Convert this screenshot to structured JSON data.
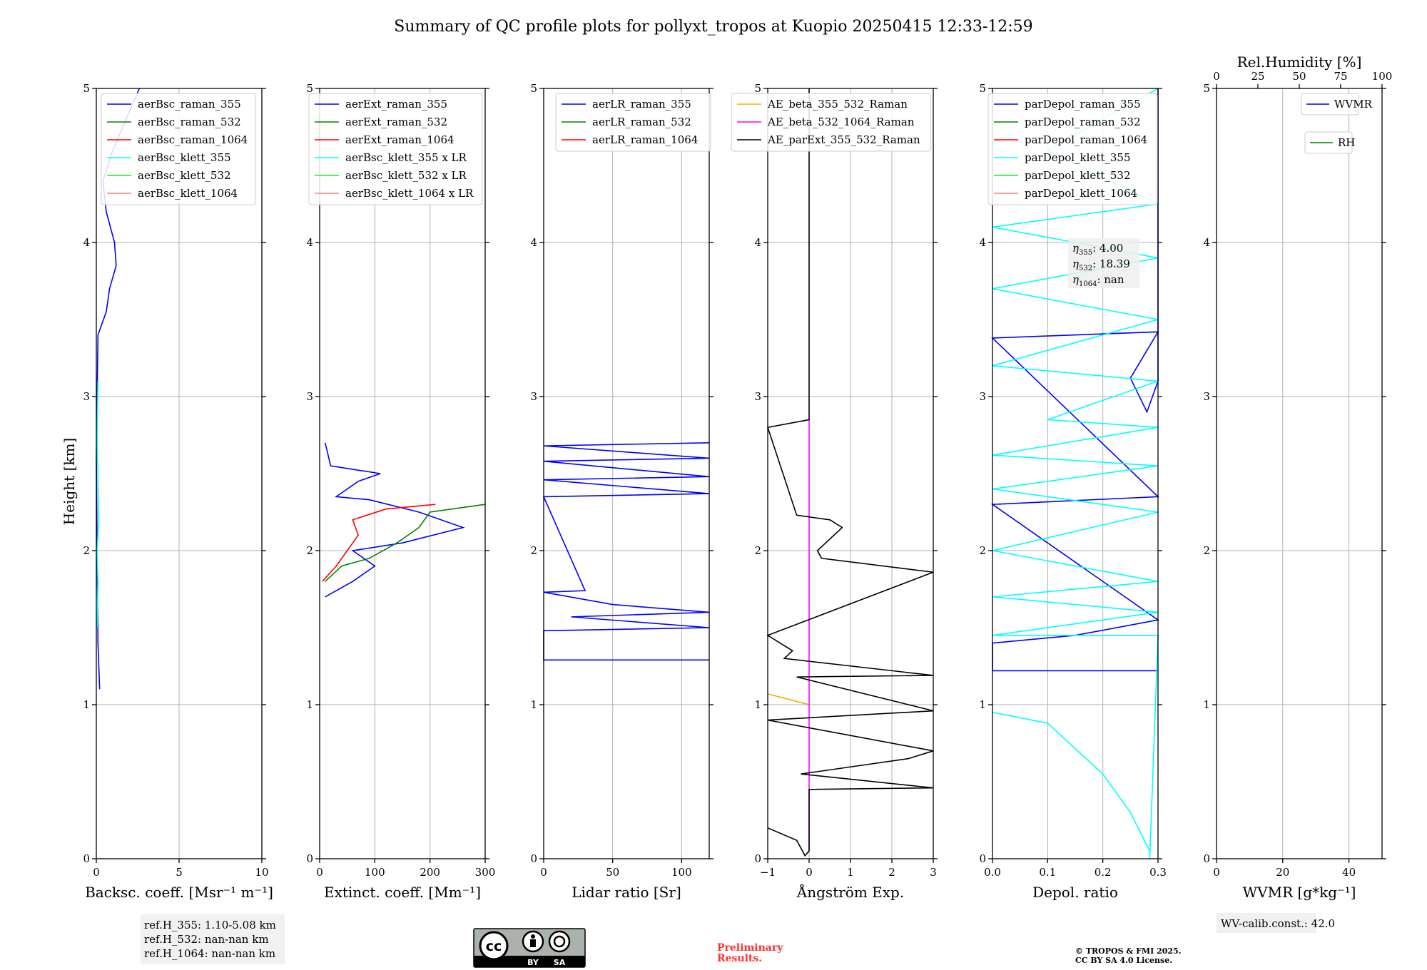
{
  "title": "Summary of QC profile plots for pollyxt_tropos at Kuopio 20250415 12:33-12:59",
  "y_axis_label": "Height [km]",
  "colors": {
    "blue": "#0000ff",
    "green": "#008000",
    "red": "#ff0000",
    "cyan": "#00ffff",
    "lime": "#00ff00",
    "pink": "#ff7f7f",
    "orange": "#ffa500",
    "magenta": "#ff00ff",
    "black": "#000000"
  },
  "chart_data": [
    {
      "type": "line",
      "xlabel": "Backsc. coeff. [Msr⁻¹ m⁻¹]",
      "xlim": [
        0,
        10
      ],
      "xticks": [
        "0",
        "5",
        "10"
      ],
      "xtick_values": [
        0,
        5,
        10
      ],
      "ylim": [
        0,
        5
      ],
      "yticks": [
        "0",
        "1",
        "2",
        "3",
        "4",
        "5"
      ],
      "legend": "top-right",
      "series": [
        {
          "name": "aerBsc_raman_355",
          "color": "#0000ff",
          "points": [
            [
              0.2,
              1.1
            ],
            [
              0.1,
              1.4
            ],
            [
              0.05,
              2.0
            ],
            [
              0.0,
              2.6
            ],
            [
              0.1,
              3.4
            ],
            [
              0.6,
              3.55
            ],
            [
              0.8,
              3.7
            ],
            [
              1.2,
              3.85
            ],
            [
              1.1,
              4.0
            ],
            [
              0.6,
              4.2
            ],
            [
              0.4,
              4.4
            ],
            [
              1.0,
              4.6
            ],
            [
              1.8,
              4.8
            ],
            [
              2.6,
              5.0
            ]
          ]
        },
        {
          "name": "aerBsc_raman_532",
          "color": "#008000",
          "points": []
        },
        {
          "name": "aerBsc_raman_1064",
          "color": "#ff0000",
          "points": []
        },
        {
          "name": "aerBsc_klett_355",
          "color": "#00ffff",
          "points": [
            [
              0.05,
              1.5
            ],
            [
              0.1,
              1.8
            ],
            [
              0.05,
              2.0
            ],
            [
              0.15,
              2.2
            ],
            [
              0.1,
              2.45
            ],
            [
              0.05,
              2.7
            ],
            [
              0.1,
              3.1
            ]
          ]
        },
        {
          "name": "aerBsc_klett_532",
          "color": "#00ff00",
          "points": []
        },
        {
          "name": "aerBsc_klett_1064",
          "color": "#ff7f7f",
          "points": []
        }
      ]
    },
    {
      "type": "line",
      "xlabel": "Extinct. coeff. [Mm⁻¹]",
      "xlim": [
        0,
        300
      ],
      "xticks": [
        "0",
        "100",
        "200",
        "300"
      ],
      "xtick_values": [
        0,
        100,
        200,
        300
      ],
      "ylim": [
        0,
        5
      ],
      "yticks": [
        "0",
        "1",
        "2",
        "3",
        "4",
        "5"
      ],
      "legend": "top-right",
      "series": [
        {
          "name": "aerExt_raman_355",
          "color": "#0000ff",
          "points": [
            [
              10,
              1.7
            ],
            [
              60,
              1.8
            ],
            [
              100,
              1.9
            ],
            [
              60,
              2.0
            ],
            [
              150,
              2.05
            ],
            [
              260,
              2.15
            ],
            [
              180,
              2.25
            ],
            [
              90,
              2.33
            ],
            [
              30,
              2.35
            ],
            [
              70,
              2.45
            ],
            [
              110,
              2.5
            ],
            [
              20,
              2.55
            ],
            [
              10,
              2.7
            ]
          ]
        },
        {
          "name": "aerExt_raman_532",
          "color": "#008000",
          "points": [
            [
              10,
              1.8
            ],
            [
              40,
              1.9
            ],
            [
              90,
              1.95
            ],
            [
              140,
              2.05
            ],
            [
              180,
              2.15
            ],
            [
              200,
              2.25
            ],
            [
              300,
              2.3
            ]
          ]
        },
        {
          "name": "aerExt_raman_1064",
          "color": "#ff0000",
          "points": [
            [
              5,
              1.8
            ],
            [
              30,
              1.9
            ],
            [
              50,
              2.0
            ],
            [
              70,
              2.1
            ],
            [
              60,
              2.2
            ],
            [
              120,
              2.27
            ],
            [
              210,
              2.3
            ]
          ]
        },
        {
          "name": "aerBsc_klett_355 x LR",
          "color": "#00ffff",
          "points": []
        },
        {
          "name": "aerBsc_klett_532 x LR",
          "color": "#00ff00",
          "points": []
        },
        {
          "name": "aerBsc_klett_1064 x LR",
          "color": "#ff7f7f",
          "points": []
        }
      ]
    },
    {
      "type": "line",
      "xlabel": "Lidar ratio [Sr]",
      "xlim": [
        0,
        120
      ],
      "xticks": [
        "0",
        "50",
        "100"
      ],
      "xtick_values": [
        0,
        50,
        100
      ],
      "ylim": [
        0,
        5
      ],
      "yticks": [
        "0",
        "1",
        "2",
        "3",
        "4",
        "5"
      ],
      "legend": "top-right",
      "series": [
        {
          "name": "aerLR_raman_355",
          "color": "#0000ff",
          "points": [
            [
              120,
              1.29
            ],
            [
              0,
              1.29
            ],
            [
              0,
              1.48
            ],
            [
              120,
              1.5
            ],
            [
              20,
              1.57
            ],
            [
              120,
              1.6
            ],
            [
              50,
              1.65
            ],
            [
              0,
              1.73
            ],
            [
              30,
              1.74
            ],
            [
              0,
              2.35
            ],
            [
              120,
              2.37
            ],
            [
              0,
              2.46
            ],
            [
              120,
              2.48
            ],
            [
              0,
              2.58
            ],
            [
              120,
              2.6
            ],
            [
              0,
              2.68
            ],
            [
              120,
              2.7
            ]
          ]
        },
        {
          "name": "aerLR_raman_532",
          "color": "#008000",
          "points": []
        },
        {
          "name": "aerLR_raman_1064",
          "color": "#ff0000",
          "points": []
        }
      ]
    },
    {
      "type": "line",
      "xlabel": "Ångström Exp.",
      "xlim": [
        -1,
        3
      ],
      "xticks": [
        "−1",
        "0",
        "1",
        "2",
        "3"
      ],
      "xtick_values": [
        -1,
        0,
        1,
        2,
        3
      ],
      "ylim": [
        0,
        5
      ],
      "yticks": [
        "0",
        "1",
        "2",
        "3",
        "4",
        "5"
      ],
      "legend": "top-right",
      "series": [
        {
          "name": "AE_beta_355_532_Raman",
          "color": "#ffa500",
          "points": [
            [
              -1,
              1.07
            ],
            [
              0,
              1.0
            ]
          ]
        },
        {
          "name": "AE_beta_532_1064_Raman",
          "color": "#ff00ff",
          "points": [
            [
              0,
              0.05
            ],
            [
              0,
              2.85
            ]
          ]
        },
        {
          "name": "AE_parExt_355_532_Raman",
          "color": "#000000",
          "points": [
            [
              -1,
              0.2
            ],
            [
              -0.3,
              0.12
            ],
            [
              -0.1,
              0.02
            ],
            [
              0,
              0.05
            ],
            [
              0,
              0.45
            ],
            [
              3,
              0.46
            ],
            [
              -0.2,
              0.55
            ],
            [
              2.4,
              0.65
            ],
            [
              3,
              0.7
            ],
            [
              -1,
              0.9
            ],
            [
              3,
              0.96
            ],
            [
              -0.3,
              1.18
            ],
            [
              3,
              1.19
            ],
            [
              -0.6,
              1.3
            ],
            [
              -0.4,
              1.35
            ],
            [
              -1,
              1.45
            ],
            [
              3,
              1.86
            ],
            [
              0.3,
              1.95
            ],
            [
              0.2,
              2.0
            ],
            [
              0.8,
              2.15
            ],
            [
              0.5,
              2.2
            ],
            [
              -0.3,
              2.23
            ],
            [
              -1,
              2.8
            ],
            [
              0,
              2.85
            ],
            [
              0,
              5.0
            ]
          ]
        }
      ]
    },
    {
      "type": "line",
      "xlabel": "Depol. ratio",
      "xlim": [
        0,
        0.3
      ],
      "xticks": [
        "0.0",
        "0.1",
        "0.2",
        "0.3"
      ],
      "xtick_values": [
        0,
        0.1,
        0.2,
        0.3
      ],
      "ylim": [
        0,
        5
      ],
      "yticks": [
        "0",
        "1",
        "2",
        "3",
        "4",
        "5"
      ],
      "legend": "top-right",
      "series": [
        {
          "name": "parDepol_raman_355",
          "color": "#0000ff",
          "points": [
            [
              0.3,
              1.22
            ],
            [
              0,
              1.22
            ],
            [
              0,
              1.4
            ],
            [
              0.15,
              1.45
            ],
            [
              0.3,
              1.55
            ],
            [
              0,
              2.3
            ],
            [
              0.3,
              2.35
            ],
            [
              0,
              3.38
            ],
            [
              0.3,
              3.42
            ],
            [
              0.25,
              3.12
            ],
            [
              0.28,
              2.9
            ],
            [
              0.3,
              3.1
            ],
            [
              0.3,
              5.0
            ]
          ]
        },
        {
          "name": "parDepol_raman_532",
          "color": "#008000",
          "points": []
        },
        {
          "name": "parDepol_raman_1064",
          "color": "#ff0000",
          "points": []
        },
        {
          "name": "parDepol_klett_355",
          "color": "#00ffff",
          "points": [
            [
              0,
              0.95
            ],
            [
              0.1,
              0.88
            ],
            [
              0.2,
              0.55
            ],
            [
              0.25,
              0.3
            ],
            [
              0.285,
              0.05
            ],
            [
              0.285,
              0.0
            ],
            [
              0.3,
              1.45
            ],
            [
              0,
              1.45
            ],
            [
              0.3,
              1.6
            ],
            [
              0,
              1.7
            ],
            [
              0.3,
              1.8
            ],
            [
              0,
              2.0
            ],
            [
              0.3,
              2.25
            ],
            [
              0,
              2.4
            ],
            [
              0.3,
              2.55
            ],
            [
              0,
              2.62
            ],
            [
              0.3,
              2.8
            ],
            [
              0.1,
              2.85
            ],
            [
              0.3,
              3.1
            ],
            [
              0,
              3.2
            ],
            [
              0.3,
              3.5
            ],
            [
              0,
              3.7
            ],
            [
              0.3,
              3.9
            ],
            [
              0,
              4.1
            ],
            [
              0.3,
              4.25
            ],
            [
              0.1,
              4.6
            ],
            [
              0.3,
              5.0
            ]
          ]
        },
        {
          "name": "parDepol_klett_532",
          "color": "#00ff00",
          "points": []
        },
        {
          "name": "parDepol_klett_1064",
          "color": "#ff7f7f",
          "points": []
        }
      ]
    },
    {
      "type": "line",
      "xlabel": "WVMR [g*kg⁻¹]",
      "xlim": [
        0,
        50
      ],
      "xticks": [
        "0",
        "20",
        "40"
      ],
      "xtick_values": [
        0,
        20,
        40
      ],
      "ylim": [
        0,
        5
      ],
      "yticks": [
        "0",
        "1",
        "2",
        "3",
        "4",
        "5"
      ],
      "x2label": "Rel.Humidity [%]",
      "x2ticks": [
        "0",
        "25",
        "50",
        "75",
        "100"
      ],
      "x2tick_values": [
        0,
        25,
        50,
        75,
        100
      ],
      "legend": "top-right",
      "series": [
        {
          "name": "WVMR",
          "color": "#0000ff",
          "points": []
        },
        {
          "name": "RH",
          "color": "#008000",
          "points": []
        }
      ]
    }
  ],
  "annotations": {
    "ref_heights": [
      "ref.H_355: 1.10-5.08 km",
      "ref.H_532: nan-nan km",
      "ref.H_1064: nan-nan km"
    ],
    "eta_lines": [
      {
        "sym": "η",
        "sub": "355",
        "text": ": 4.00"
      },
      {
        "sym": "η",
        "sub": "532",
        "text": ": 18.39"
      },
      {
        "sym": "η",
        "sub": "1064",
        "text": ": nan"
      }
    ],
    "wv_calib": "WV-calib.const.: 42.0",
    "preliminary": [
      "Preliminary",
      "Results."
    ],
    "copyright": [
      "© TROPOS & FMI 2025.",
      "CC BY SA 4.0 License."
    ],
    "license_badge": {
      "cc": "cc",
      "by": "BY",
      "sa": "SA"
    }
  }
}
